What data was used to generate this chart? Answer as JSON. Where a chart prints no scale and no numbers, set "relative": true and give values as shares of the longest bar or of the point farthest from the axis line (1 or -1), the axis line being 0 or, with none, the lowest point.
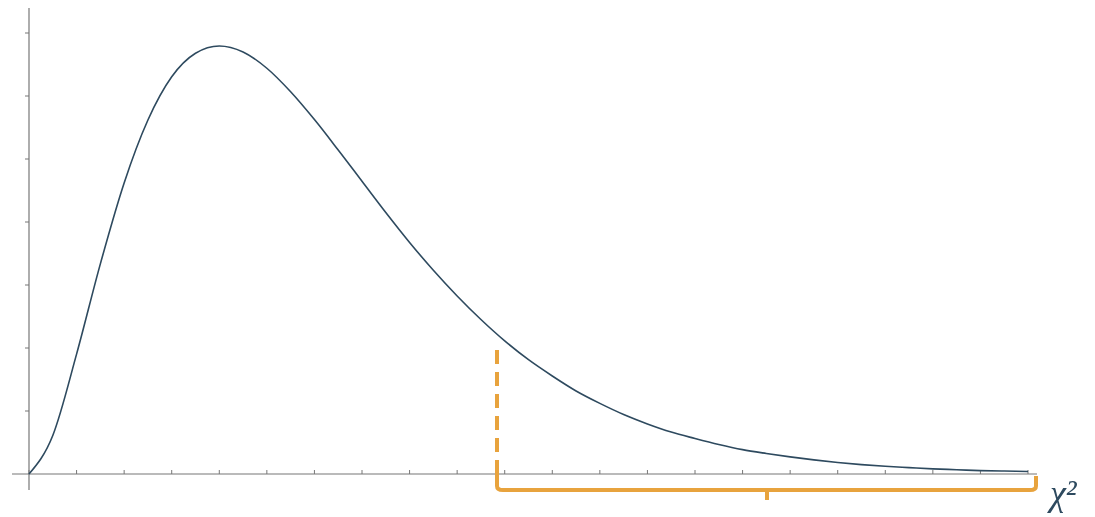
{
  "chart_data": {
    "type": "line",
    "relative": true,
    "xlabel": "χ²",
    "categories": [
      null,
      null,
      null,
      null,
      null,
      null,
      null,
      null,
      null,
      null,
      null,
      null,
      null,
      null,
      null,
      null,
      null,
      null,
      null,
      null,
      null,
      null,
      null,
      null,
      null,
      null,
      null,
      null,
      null,
      null,
      null,
      null,
      null,
      null,
      null,
      null,
      null,
      null,
      null,
      null,
      null,
      null,
      null
    ],
    "series": [
      {
        "color": "#2e4a5f",
        "values": [
          0,
          0.09,
          0.28,
          0.491,
          0.68,
          0.827,
          0.928,
          0.983,
          1,
          0.986,
          0.948,
          0.893,
          0.828,
          0.757,
          0.684,
          0.611,
          0.541,
          0.476,
          0.416,
          0.361,
          0.311,
          0.267,
          0.229,
          0.194,
          0.165,
          0.139,
          0.117,
          0.098,
          0.083,
          0.069,
          0.057,
          0.048,
          0.04,
          0.033,
          0.027,
          0.022,
          0.018,
          0.015,
          0.012,
          0.01,
          0.008,
          0.007,
          0.006
        ]
      }
    ],
    "marker": "none",
    "line_style": "solid",
    "grid": false
  }
}
